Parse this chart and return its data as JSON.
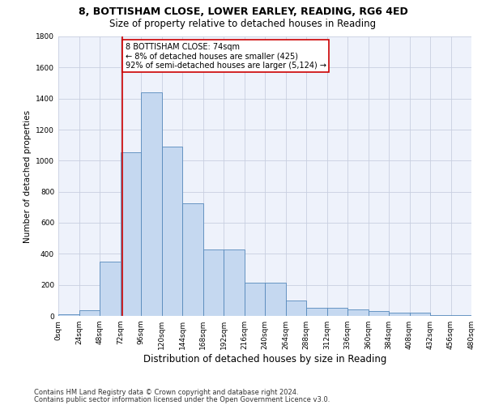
{
  "title1": "8, BOTTISHAM CLOSE, LOWER EARLEY, READING, RG6 4ED",
  "title2": "Size of property relative to detached houses in Reading",
  "xlabel": "Distribution of detached houses by size in Reading",
  "ylabel": "Number of detached properties",
  "bar_color": "#c5d8f0",
  "bar_edge_color": "#5588bb",
  "background_color": "#eef2fb",
  "grid_color": "#c8cfe0",
  "bin_edges": [
    0,
    24,
    48,
    72,
    96,
    120,
    144,
    168,
    192,
    216,
    240,
    264,
    288,
    312,
    336,
    360,
    384,
    408,
    432,
    456,
    480
  ],
  "bar_heights": [
    10,
    35,
    350,
    1055,
    1440,
    1090,
    725,
    430,
    430,
    215,
    215,
    100,
    50,
    50,
    40,
    30,
    20,
    20,
    5,
    5
  ],
  "vline_x": 74,
  "vline_color": "#cc0000",
  "annotation_line1": "8 BOTTISHAM CLOSE: 74sqm",
  "annotation_line2": "← 8% of detached houses are smaller (425)",
  "annotation_line3": "92% of semi-detached houses are larger (5,124) →",
  "annotation_box_facecolor": "#ffffff",
  "annotation_box_edgecolor": "#cc0000",
  "ylim": [
    0,
    1800
  ],
  "yticks": [
    0,
    200,
    400,
    600,
    800,
    1000,
    1200,
    1400,
    1600,
    1800
  ],
  "xtick_labels": [
    "0sqm",
    "24sqm",
    "48sqm",
    "72sqm",
    "96sqm",
    "120sqm",
    "144sqm",
    "168sqm",
    "192sqm",
    "216sqm",
    "240sqm",
    "264sqm",
    "288sqm",
    "312sqm",
    "336sqm",
    "360sqm",
    "384sqm",
    "408sqm",
    "432sqm",
    "456sqm",
    "480sqm"
  ],
  "footer1": "Contains HM Land Registry data © Crown copyright and database right 2024.",
  "footer2": "Contains public sector information licensed under the Open Government Licence v3.0.",
  "title1_fontsize": 9,
  "title2_fontsize": 8.5,
  "xlabel_fontsize": 8.5,
  "ylabel_fontsize": 7.5,
  "tick_fontsize": 6.5,
  "annot_fontsize": 7,
  "footer_fontsize": 6
}
